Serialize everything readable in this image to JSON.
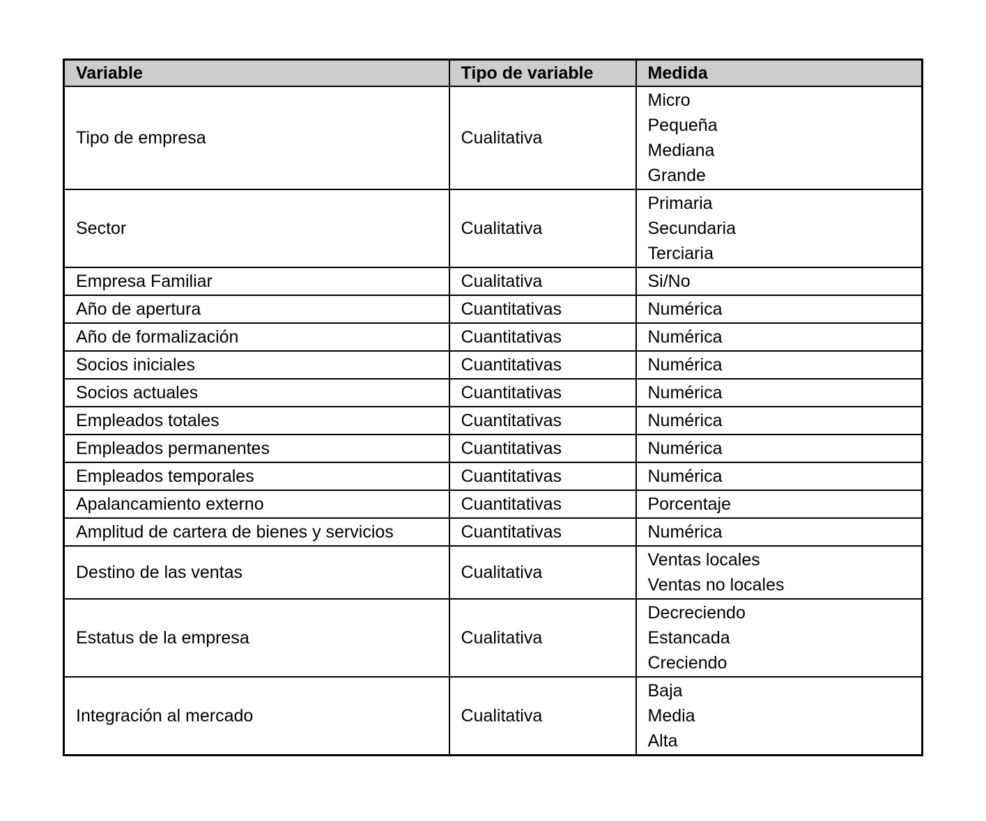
{
  "table": {
    "headers": [
      "Variable",
      "Tipo de variable",
      "Medida"
    ],
    "rows": [
      {
        "variable": "Tipo de empresa",
        "tipo": "Cualitativa",
        "medida": [
          "Micro",
          "Pequeña",
          "Mediana",
          "Grande"
        ]
      },
      {
        "variable": "Sector",
        "tipo": "Cualitativa",
        "medida": [
          "Primaria",
          "Secundaria",
          "Terciaria"
        ]
      },
      {
        "variable": "Empresa Familiar",
        "tipo": "Cualitativa",
        "medida": [
          "Si/No"
        ]
      },
      {
        "variable": "Año de apertura",
        "tipo": "Cuantitativas",
        "medida": [
          "Numérica"
        ]
      },
      {
        "variable": "Año de formalización",
        "tipo": "Cuantitativas",
        "medida": [
          "Numérica"
        ]
      },
      {
        "variable": "Socios iniciales",
        "tipo": "Cuantitativas",
        "medida": [
          "Numérica"
        ]
      },
      {
        "variable": "Socios actuales",
        "tipo": "Cuantitativas",
        "medida": [
          "Numérica"
        ]
      },
      {
        "variable": "Empleados totales",
        "tipo": "Cuantitativas",
        "medida": [
          "Numérica"
        ]
      },
      {
        "variable": "Empleados permanentes",
        "tipo": "Cuantitativas",
        "medida": [
          "Numérica"
        ]
      },
      {
        "variable": "Empleados temporales",
        "tipo": "Cuantitativas",
        "medida": [
          "Numérica"
        ]
      },
      {
        "variable": "Apalancamiento externo",
        "tipo": "Cuantitativas",
        "medida": [
          "Porcentaje"
        ]
      },
      {
        "variable": "Amplitud de cartera de bienes y servicios",
        "tipo": "Cuantitativas",
        "medida": [
          "Numérica"
        ]
      },
      {
        "variable": "Destino de las ventas",
        "tipo": "Cualitativa",
        "medida": [
          "Ventas locales",
          "Ventas no locales"
        ]
      },
      {
        "variable": "Estatus de la empresa",
        "tipo": "Cualitativa",
        "medida": [
          "Decreciendo",
          "Estancada",
          "Creciendo"
        ]
      },
      {
        "variable": "Integración al mercado",
        "tipo": "Cualitativa",
        "medida": [
          "Baja",
          "Media",
          "Alta"
        ]
      }
    ],
    "colors": {
      "header_background": "#cdcdcd",
      "border": "#000000",
      "text": "#000000"
    }
  }
}
